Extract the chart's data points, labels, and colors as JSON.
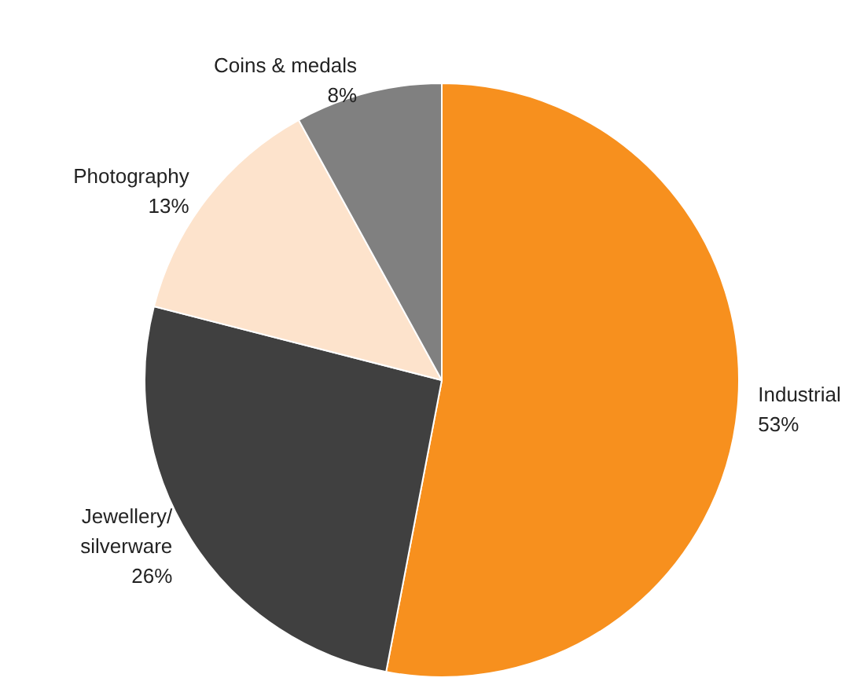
{
  "chart_data": {
    "type": "pie",
    "categories": [
      "Industrial",
      "Jewellery/\nsilverware",
      "Photography",
      "Coins & medals"
    ],
    "values": [
      53,
      26,
      13,
      8
    ],
    "value_labels": [
      "53%",
      "26%",
      "13%",
      "8%"
    ],
    "colors": [
      "#f7901e",
      "#404040",
      "#fde3cc",
      "#808080"
    ],
    "legend": false
  }
}
